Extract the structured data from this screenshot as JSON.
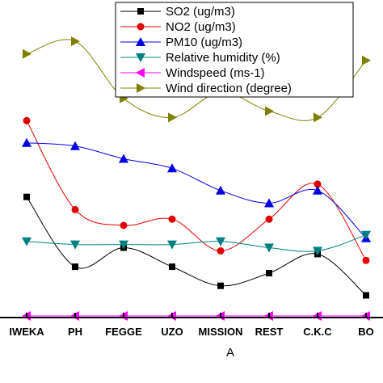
{
  "chart_data": {
    "type": "line",
    "xlabel": "A",
    "ylabel": "",
    "categories": [
      "IWEKA",
      "PH",
      "FEGGE",
      "UZO",
      "MISSION",
      "REST",
      "C.K.C",
      "BO"
    ],
    "ylim": [
      0,
      100
    ],
    "legend_position": "top-right",
    "grid": false,
    "series": [
      {
        "name": "SO2 (ug/m3)",
        "color": "#000000",
        "marker": "square",
        "values": [
          38,
          16,
          22,
          16,
          10,
          14,
          20,
          7
        ]
      },
      {
        "name": "NO2 (ug/m3)",
        "color": "#e00000",
        "marker": "circle",
        "values": [
          62,
          34,
          29,
          31,
          21,
          31,
          42,
          18
        ]
      },
      {
        "name": "PM10 (ug/m3)",
        "color": "#0000e0",
        "marker": "triangle-up",
        "values": [
          55,
          54,
          50,
          47,
          40,
          36,
          40,
          25
        ]
      },
      {
        "name": "Relative humidity (%)",
        "color": "#008080",
        "marker": "triangle-down",
        "values": [
          24,
          23,
          23,
          23,
          24,
          22,
          21,
          26
        ]
      },
      {
        "name": "Windspeed (ms-1)",
        "color": "#ff00ff",
        "marker": "triangle-left",
        "values": [
          0.5,
          0.5,
          0.5,
          0.5,
          0.5,
          0.5,
          0.5,
          0.5
        ]
      },
      {
        "name": "Wind direction (degree)",
        "color": "#808000",
        "marker": "triangle-right",
        "values": [
          83,
          87,
          69,
          63,
          71,
          65,
          63,
          81
        ]
      }
    ]
  }
}
